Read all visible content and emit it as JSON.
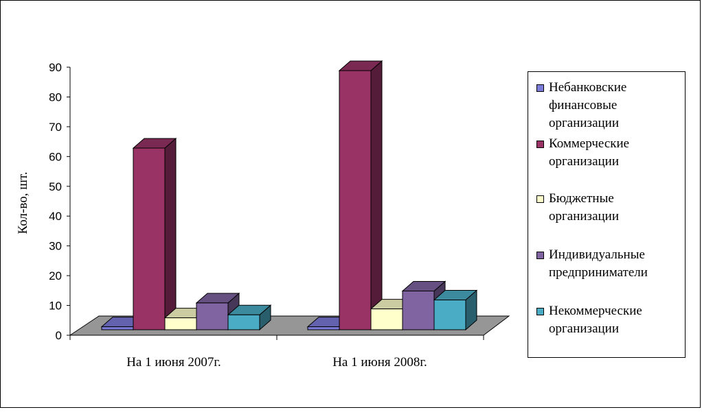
{
  "chart_data": {
    "type": "bar",
    "categories": [
      "На 1 июня 2007г.",
      "На 1 июня 2008г."
    ],
    "series": [
      {
        "name": "Небанковские финансовые организации",
        "values": [
          1,
          1
        ],
        "color": "#7b7bd9"
      },
      {
        "name": "Коммерческие организации",
        "values": [
          61,
          87
        ],
        "color": "#993366"
      },
      {
        "name": "Бюджетные организации",
        "values": [
          4,
          7
        ],
        "color": "#ffffcc"
      },
      {
        "name": "Индивидуальные предприниматели",
        "values": [
          9,
          13
        ],
        "color": "#8064a2"
      },
      {
        "name": "Некоммерческие организации",
        "values": [
          5,
          10
        ],
        "color": "#4bacc6"
      }
    ],
    "ylabel": "Кол-во, шт.",
    "xlabel": "",
    "ylim": [
      0,
      90
    ],
    "yticks": [
      "0",
      "10",
      "20",
      "30",
      "40",
      "50",
      "60",
      "70",
      "80",
      "90"
    ],
    "floor_color": "#969696",
    "legend_position": "right",
    "grid": false
  }
}
